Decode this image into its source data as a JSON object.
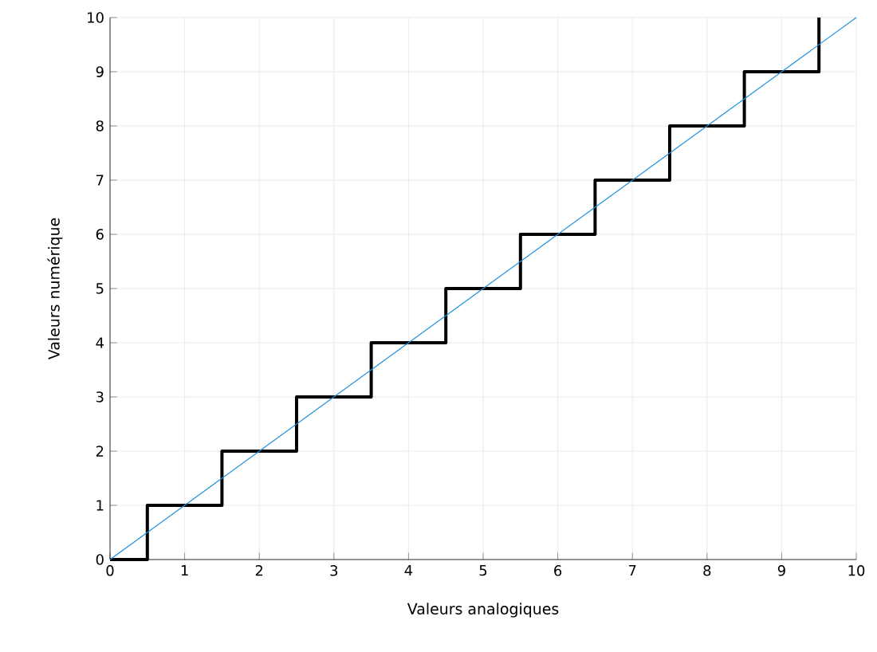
{
  "chart_data": {
    "type": "line",
    "xlabel": "Valeurs analogiques",
    "ylabel": "Valeurs numérique",
    "xlim": [
      0,
      10
    ],
    "ylim": [
      0,
      10
    ],
    "xticks": [
      0,
      1,
      2,
      3,
      4,
      5,
      6,
      7,
      8,
      9,
      10
    ],
    "yticks": [
      0,
      1,
      2,
      3,
      4,
      5,
      6,
      7,
      8,
      9,
      10
    ],
    "grid": true,
    "series": [
      {
        "type": "step",
        "color": "#000000",
        "x": [
          0,
          0.5,
          1.5,
          2.5,
          3.5,
          4.5,
          5.5,
          6.5,
          7.5,
          8.5,
          9.5
        ],
        "values": [
          0,
          1,
          2,
          3,
          4,
          5,
          6,
          7,
          8,
          9,
          10
        ]
      },
      {
        "color": "#1e90e0",
        "x": [
          0,
          10
        ],
        "values": [
          0,
          10
        ]
      }
    ]
  }
}
